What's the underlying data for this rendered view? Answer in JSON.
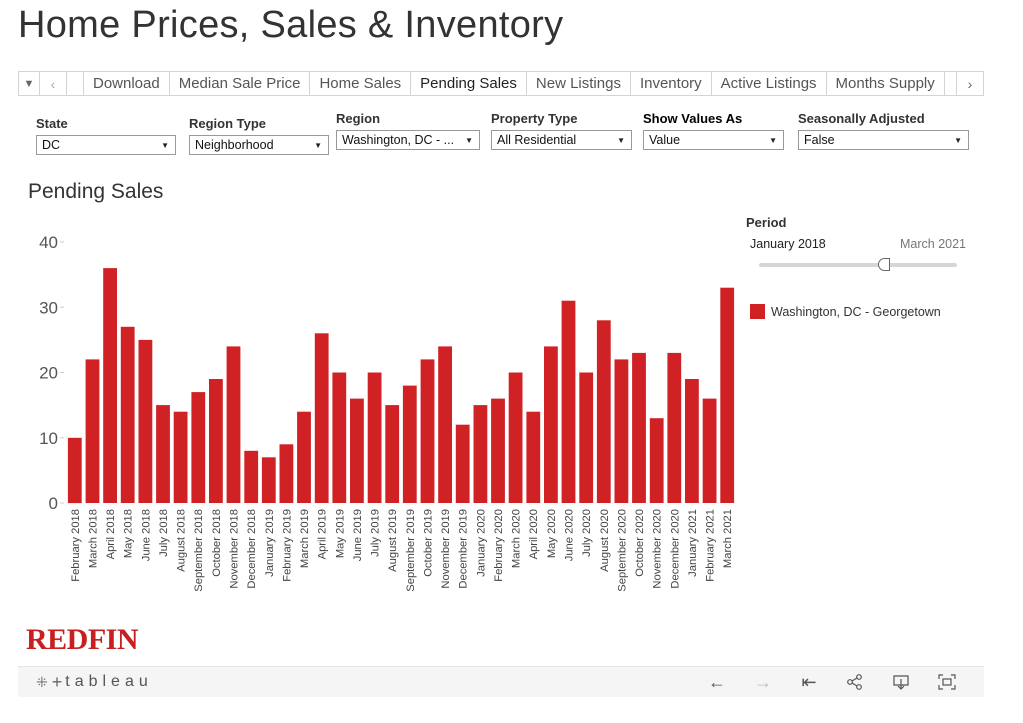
{
  "title": "Home Prices, Sales & Inventory",
  "tabs": [
    "Download",
    "Median Sale Price",
    "Home Sales",
    "Pending Sales",
    "New Listings",
    "Inventory",
    "Active Listings",
    "Months Supply"
  ],
  "active_tab": "Pending Sales",
  "filters": {
    "state": {
      "label": "State",
      "value": "DC"
    },
    "region_type": {
      "label": "Region Type",
      "value": "Neighborhood"
    },
    "region": {
      "label": "Region",
      "value": "Washington, DC - ..."
    },
    "property_type": {
      "label": "Property Type",
      "value": "All Residential"
    },
    "show_values_as": {
      "label": "Show Values As",
      "value": "Value"
    },
    "seasonally_adjusted": {
      "label": "Seasonally Adjusted",
      "value": "False"
    }
  },
  "chart_title": "Pending Sales",
  "period": {
    "title": "Period",
    "start": "January 2018",
    "end": "March 2021"
  },
  "legend": {
    "label": "Washington, DC - Georgetown",
    "color": "#d02124"
  },
  "brand": {
    "redfin": "REDFIN",
    "tableau": "tableau"
  },
  "chart_data": {
    "type": "bar",
    "title": "Pending Sales",
    "xlabel": "",
    "ylabel": "",
    "ylim": [
      0,
      40
    ],
    "yticks": [
      0,
      10,
      20,
      30,
      40
    ],
    "color": "#d02124",
    "grid": false,
    "legend_position": "right",
    "series": [
      {
        "name": "Washington, DC - Georgetown",
        "values": [
          10,
          22,
          36,
          27,
          25,
          15,
          14,
          17,
          19,
          24,
          8,
          7,
          9,
          14,
          26,
          20,
          16,
          20,
          15,
          18,
          22,
          24,
          12,
          15,
          16,
          20,
          14,
          24,
          31,
          20,
          28,
          22,
          23,
          13,
          23,
          19,
          16,
          33
        ]
      }
    ],
    "categories": [
      "February 2018",
      "March 2018",
      "April 2018",
      "May 2018",
      "June 2018",
      "July 2018",
      "August 2018",
      "September 2018",
      "October 2018",
      "November 2018",
      "December 2018",
      "January 2019",
      "February 2019",
      "March 2019",
      "April 2019",
      "May 2019",
      "June 2019",
      "July 2019",
      "August 2019",
      "September 2019",
      "October 2019",
      "November 2019",
      "December 2019",
      "January 2020",
      "February 2020",
      "March 2020",
      "April 2020",
      "May 2020",
      "June 2020",
      "July 2020",
      "August 2020",
      "September 2020",
      "October 2020",
      "November 2020",
      "December 2020",
      "January 2021",
      "February 2021",
      "March 2021"
    ]
  },
  "toolbar": {
    "icons": [
      "undo-icon",
      "redo-icon",
      "revert-icon",
      "share-icon",
      "download-icon",
      "fullscreen-icon"
    ]
  }
}
